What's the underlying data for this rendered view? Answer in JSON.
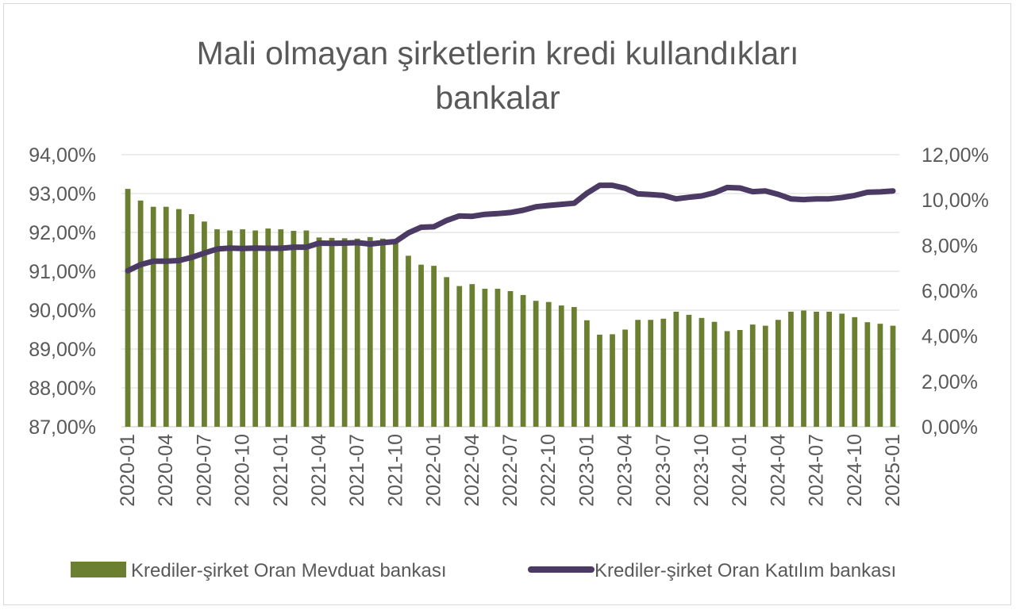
{
  "chart_data": {
    "type": "bar+line",
    "title_lines": [
      "Mali olmayan şirketlerin kredi kullandıkları",
      "bankalar"
    ],
    "x_tick_labels": [
      "2020-01",
      "2020-04",
      "2020-07",
      "2020-10",
      "2021-01",
      "2021-04",
      "2021-07",
      "2021-10",
      "2022-01",
      "2022-04",
      "2022-07",
      "2022-10",
      "2023-01",
      "2023-04",
      "2023-07",
      "2023-10",
      "2024-01",
      "2024-04",
      "2024-07",
      "2024-10",
      "2025-01"
    ],
    "left_axis": {
      "min": 87,
      "max": 94,
      "step": 1,
      "tick_labels": [
        "87,00%",
        "88,00%",
        "89,00%",
        "90,00%",
        "91,00%",
        "92,00%",
        "93,00%",
        "94,00%"
      ]
    },
    "right_axis": {
      "min": 0,
      "max": 12,
      "step": 2,
      "tick_labels": [
        "0,00%",
        "2,00%",
        "4,00%",
        "6,00%",
        "8,00%",
        "10,00%",
        "12,00%"
      ]
    },
    "grid": true,
    "legend_position": "bottom",
    "series": [
      {
        "name": "Krediler-şirket Oran Mevduat bankası",
        "type": "bar",
        "axis": "left",
        "color": "#6a7f2f",
        "values": [
          93.12,
          92.82,
          92.66,
          92.66,
          92.6,
          92.47,
          92.28,
          92.08,
          92.05,
          92.08,
          92.05,
          92.1,
          92.08,
          92.04,
          92.05,
          91.87,
          91.86,
          91.85,
          91.84,
          91.88,
          91.84,
          91.77,
          91.4,
          91.17,
          91.14,
          90.85,
          90.62,
          90.67,
          90.55,
          90.55,
          90.49,
          90.39,
          90.24,
          90.21,
          90.12,
          90.08,
          89.74,
          89.37,
          89.38,
          89.5,
          89.75,
          89.75,
          89.78,
          89.96,
          89.88,
          89.8,
          89.7,
          89.46,
          89.49,
          89.63,
          89.6,
          89.75,
          89.96,
          89.99,
          89.96,
          89.96,
          89.91,
          89.82,
          89.69,
          89.65,
          89.6
        ]
      },
      {
        "name": "Krediler-şirket Oran Katılım bankası",
        "type": "line",
        "axis": "right",
        "color": "#4b3a64",
        "values": [
          6.88,
          7.15,
          7.3,
          7.3,
          7.33,
          7.47,
          7.66,
          7.84,
          7.88,
          7.86,
          7.88,
          7.87,
          7.87,
          7.92,
          7.92,
          8.1,
          8.09,
          8.1,
          8.12,
          8.06,
          8.12,
          8.17,
          8.55,
          8.8,
          8.82,
          9.1,
          9.3,
          9.28,
          9.37,
          9.4,
          9.45,
          9.55,
          9.7,
          9.76,
          9.81,
          9.86,
          10.3,
          10.65,
          10.65,
          10.52,
          10.27,
          10.24,
          10.2,
          10.05,
          10.12,
          10.18,
          10.32,
          10.55,
          10.53,
          10.37,
          10.4,
          10.25,
          10.05,
          10.02,
          10.05,
          10.05,
          10.11,
          10.2,
          10.34,
          10.36,
          10.4
        ]
      }
    ]
  }
}
